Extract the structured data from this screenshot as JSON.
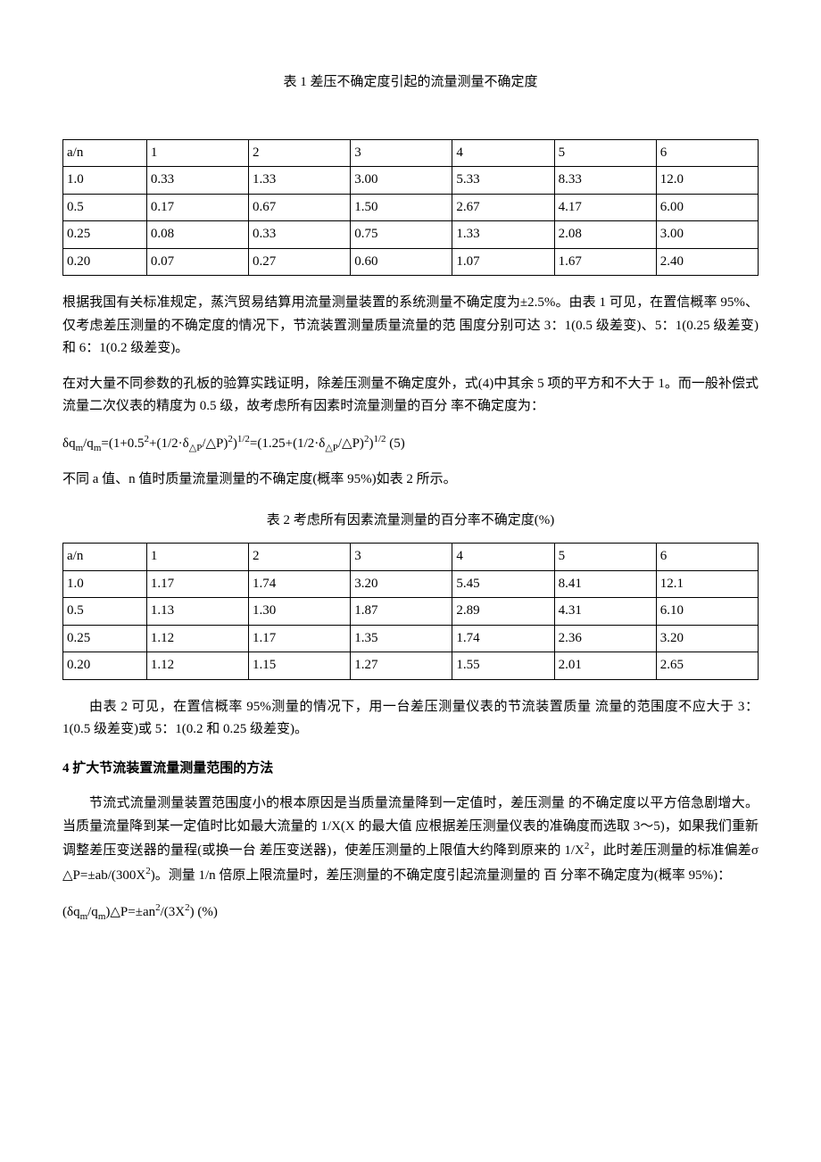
{
  "table1": {
    "caption": "表 1 差压不确定度引起的流量测量不确定度",
    "header": [
      "a/n",
      "1",
      "2",
      "3",
      "4",
      "5",
      "6"
    ],
    "rows": [
      [
        "1.0",
        "0.33",
        "1.33",
        "3.00",
        "5.33",
        "8.33",
        "12.0"
      ],
      [
        "0.5",
        "0.17",
        "0.67",
        "1.50",
        "2.67",
        "4.17",
        "6.00"
      ],
      [
        "0.25",
        "0.08",
        "0.33",
        "0.75",
        "1.33",
        "2.08",
        "3.00"
      ],
      [
        "0.20",
        "0.07",
        "0.27",
        "0.60",
        "1.07",
        "1.67",
        "2.40"
      ]
    ]
  },
  "para1": "根据我国有关标准规定，蒸汽贸易结算用流量测量装置的系统测量不确定度为±2.5%。由表 1 可见，在置信概率 95%、仅考虑差压测量的不确定度的情况下，节流装置测量质量流量的范 围度分别可达 3：1(0.5 级差变)、5：1(0.25 级差变)和 6：1(0.2 级差变)。",
  "para2": "在对大量不同参数的孔板的验算实践证明，除差压测量不确定度外，式(4)中其余 5 项的平方和不大于 1。而一般补偿式流量二次仪表的精度为 0.5 级，故考虑所有因素时流量测量的百分 率不确定度为：",
  "formula1": {
    "prefix": "δq",
    "sub1": "m",
    "mid1": "/q",
    "sub2": "m",
    "mid2": "=(1+0.5",
    "sup1": "2",
    "mid3": "+(1/2·δ",
    "sub3": "△P",
    "mid4": "/△P)",
    "sup2": "2",
    "mid5": ")",
    "sup3": "1/2",
    "mid6": "=(1.25+(1/2·δ",
    "sub4": "△P",
    "mid7": "/△P)",
    "sup4": "2",
    "mid8": ")",
    "sup5": "1/2",
    "tail": " (5)"
  },
  "para3": "不同 a 值、n 值时质量流量测量的不确定度(概率 95%)如表 2 所示。",
  "table2": {
    "caption": "表 2 考虑所有因素流量测量的百分率不确定度(%)",
    "header": [
      "a/n",
      "1",
      "2",
      "3",
      "4",
      "5",
      "6"
    ],
    "rows": [
      [
        "1.0",
        "1.17",
        "1.74",
        "3.20",
        "5.45",
        "8.41",
        "12.1"
      ],
      [
        "0.5",
        "1.13",
        "1.30",
        "1.87",
        "2.89",
        "4.31",
        "6.10"
      ],
      [
        "0.25",
        "1.12",
        "1.17",
        "1.35",
        "1.74",
        "2.36",
        "3.20"
      ],
      [
        "0.20",
        "1.12",
        "1.15",
        "1.27",
        "1.55",
        "2.01",
        "2.65"
      ]
    ]
  },
  "para4": "由表 2 可见，在置信概率 95%测量的情况下，用一台差压测量仪表的节流装置质量 流量的范围度不应大于 3：1(0.5 级差变)或 5：1(0.2 和 0.25 级差变)。",
  "section4_head": "4 扩大节流装置流量测量范围的方法",
  "para5_a": "节流式流量测量装置范围度小的根本原因是当质量流量降到一定值时，差压测量 的不确定度以平方倍急剧增大。当质量流量降到某一定值时比如最大流量的 1/X(X 的最大值 应根据差压测量仪表的准确度而选取 3～5)，如果我们重新调整差压变送器的量程(或换一台 差压变送器)，使差压测量的上限值大约降到原来的 1/X",
  "para5_sup": "2",
  "para5_b": "，此时差压测量的标准偏差σ △P=±ab/(300X",
  "para5_sup2": "2",
  "para5_c": ")。测量 1/n 倍原上限流量时，差压测量的不确定度引起流量测量的 百 分率不确定度为(概率 95%)：",
  "formula2": {
    "prefix": "(δq",
    "sub1": "m",
    "mid1": "/q",
    "sub2": "m",
    "mid2": ")△P=±an",
    "sup1": "2",
    "mid3": "/(3X",
    "sup2": "2",
    "tail": ")  (%)"
  },
  "colors": {
    "text": "#000000",
    "background": "#ffffff",
    "border": "#000000"
  }
}
